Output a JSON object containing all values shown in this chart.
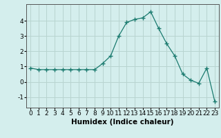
{
  "x": [
    0,
    1,
    2,
    3,
    4,
    5,
    6,
    7,
    8,
    9,
    10,
    11,
    12,
    13,
    14,
    15,
    16,
    17,
    18,
    19,
    20,
    21,
    22,
    23
  ],
  "y": [
    0.9,
    0.8,
    0.8,
    0.8,
    0.8,
    0.8,
    0.8,
    0.8,
    0.8,
    1.2,
    1.7,
    3.0,
    3.9,
    4.1,
    4.2,
    4.6,
    3.5,
    2.5,
    1.7,
    0.5,
    0.1,
    -0.1,
    0.9,
    -1.3
  ],
  "line_color": "#1a7a6e",
  "marker": "+",
  "marker_size": 4,
  "marker_lw": 1.0,
  "bg_color": "#d4eeed",
  "grid_color": "#b8d4d0",
  "xlabel": "Humidex (Indice chaleur)",
  "xlim": [
    -0.5,
    23.5
  ],
  "ylim": [
    -1.7,
    5.1
  ],
  "yticks": [
    -1,
    0,
    1,
    2,
    3,
    4
  ],
  "xticks": [
    0,
    1,
    2,
    3,
    4,
    5,
    6,
    7,
    8,
    9,
    10,
    11,
    12,
    13,
    14,
    15,
    16,
    17,
    18,
    19,
    20,
    21,
    22,
    23
  ],
  "tick_fontsize": 6.5,
  "xlabel_fontsize": 7.5
}
